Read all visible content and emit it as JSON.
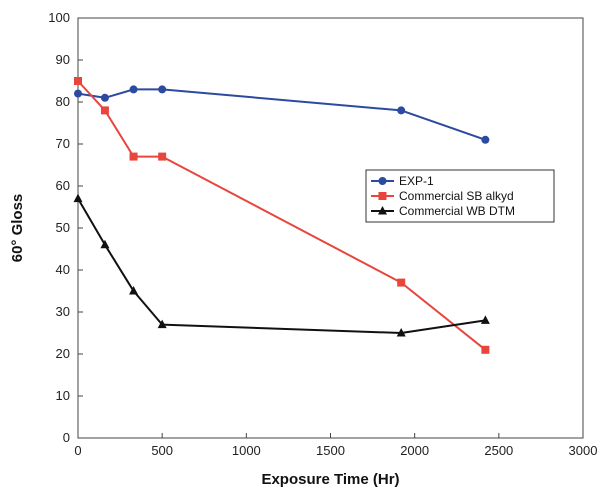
{
  "chart_data": {
    "type": "line",
    "xlabel": "Exposure Time (Hr)",
    "ylabel": "60° Gloss",
    "xlim": [
      0,
      3000
    ],
    "ylim": [
      0,
      100
    ],
    "xticks": [
      "0",
      "500",
      "1000",
      "1500",
      "2000",
      "2500",
      "3000"
    ],
    "yticks": [
      "0",
      "10",
      "20",
      "30",
      "40",
      "50",
      "60",
      "70",
      "80",
      "90",
      "100"
    ],
    "grid": false,
    "legend_position": "right",
    "series": [
      {
        "name": "EXP-1",
        "color": "#2b4aa0",
        "marker": "circle",
        "x": [
          0,
          160,
          330,
          500,
          1920,
          2420
        ],
        "y": [
          82,
          81,
          83,
          83,
          78,
          71
        ]
      },
      {
        "name": "Commercial SB alkyd",
        "color": "#e8453c",
        "marker": "square",
        "x": [
          0,
          160,
          330,
          500,
          1920,
          2420
        ],
        "y": [
          85,
          78,
          67,
          67,
          37,
          21
        ]
      },
      {
        "name": "Commercial WB DTM",
        "color": "#111111",
        "marker": "triangle",
        "x": [
          0,
          160,
          330,
          500,
          1920,
          2420
        ],
        "y": [
          57,
          46,
          35,
          27,
          25,
          28
        ]
      }
    ]
  }
}
